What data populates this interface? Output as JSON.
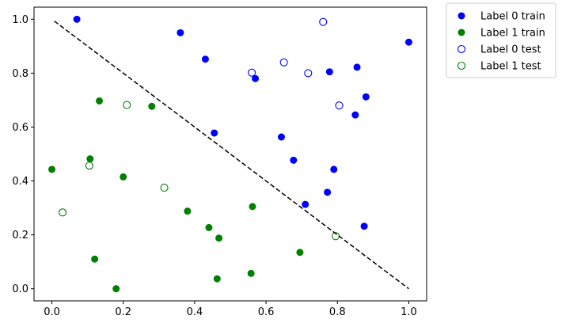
{
  "chart_data": {
    "type": "scatter",
    "title": "",
    "xlabel": "",
    "ylabel": "",
    "xlim": [
      -0.05,
      1.05
    ],
    "ylim": [
      -0.045,
      1.045
    ],
    "xticks": [
      "0.0",
      "0.2",
      "0.4",
      "0.6",
      "0.8",
      "1.0"
    ],
    "xtick_values": [
      0.0,
      0.2,
      0.4,
      0.6,
      0.8,
      1.0
    ],
    "yticks": [
      "0.0",
      "0.2",
      "0.4",
      "0.6",
      "0.8",
      "1.0"
    ],
    "ytick_values": [
      0.0,
      0.2,
      0.4,
      0.6,
      0.8,
      1.0
    ],
    "grid": false,
    "legend_position": "outside-top-right",
    "series": [
      {
        "name": "Label 0 train",
        "marker": "filled-circle",
        "color": "#0000ff",
        "points": [
          [
            0.07,
            1.0
          ],
          [
            0.36,
            0.95
          ],
          [
            1.0,
            0.915
          ],
          [
            0.43,
            0.852
          ],
          [
            0.855,
            0.822
          ],
          [
            0.778,
            0.805
          ],
          [
            0.57,
            0.78
          ],
          [
            0.88,
            0.712
          ],
          [
            0.85,
            0.645
          ],
          [
            0.455,
            0.578
          ],
          [
            0.643,
            0.563
          ],
          [
            0.677,
            0.477
          ],
          [
            0.79,
            0.443
          ],
          [
            0.772,
            0.358
          ],
          [
            0.71,
            0.313
          ],
          [
            0.875,
            0.232
          ]
        ]
      },
      {
        "name": "Label 1 train",
        "marker": "filled-circle",
        "color": "#008000",
        "points": [
          [
            0.133,
            0.697
          ],
          [
            0.28,
            0.677
          ],
          [
            0.0,
            0.443
          ],
          [
            0.107,
            0.482
          ],
          [
            0.2,
            0.415
          ],
          [
            0.38,
            0.288
          ],
          [
            0.562,
            0.305
          ],
          [
            0.44,
            0.227
          ],
          [
            0.468,
            0.188
          ],
          [
            0.12,
            0.11
          ],
          [
            0.695,
            0.135
          ],
          [
            0.558,
            0.057
          ],
          [
            0.463,
            0.037
          ],
          [
            0.18,
            0.0
          ]
        ]
      },
      {
        "name": "Label 0 test",
        "marker": "hollow-circle",
        "color": "#0000ff",
        "points": [
          [
            0.76,
            0.99
          ],
          [
            0.65,
            0.84
          ],
          [
            0.56,
            0.802
          ],
          [
            0.718,
            0.8
          ],
          [
            0.805,
            0.68
          ]
        ]
      },
      {
        "name": "Label 1 test",
        "marker": "hollow-circle",
        "color": "#008000",
        "points": [
          [
            0.21,
            0.682
          ],
          [
            0.105,
            0.457
          ],
          [
            0.315,
            0.375
          ],
          [
            0.03,
            0.283
          ],
          [
            0.795,
            0.195
          ]
        ]
      }
    ],
    "lines": [
      {
        "style": "dashed",
        "color": "#000000",
        "points": [
          [
            0.007,
            0.993
          ],
          [
            1.0,
            0.0
          ]
        ]
      }
    ]
  }
}
